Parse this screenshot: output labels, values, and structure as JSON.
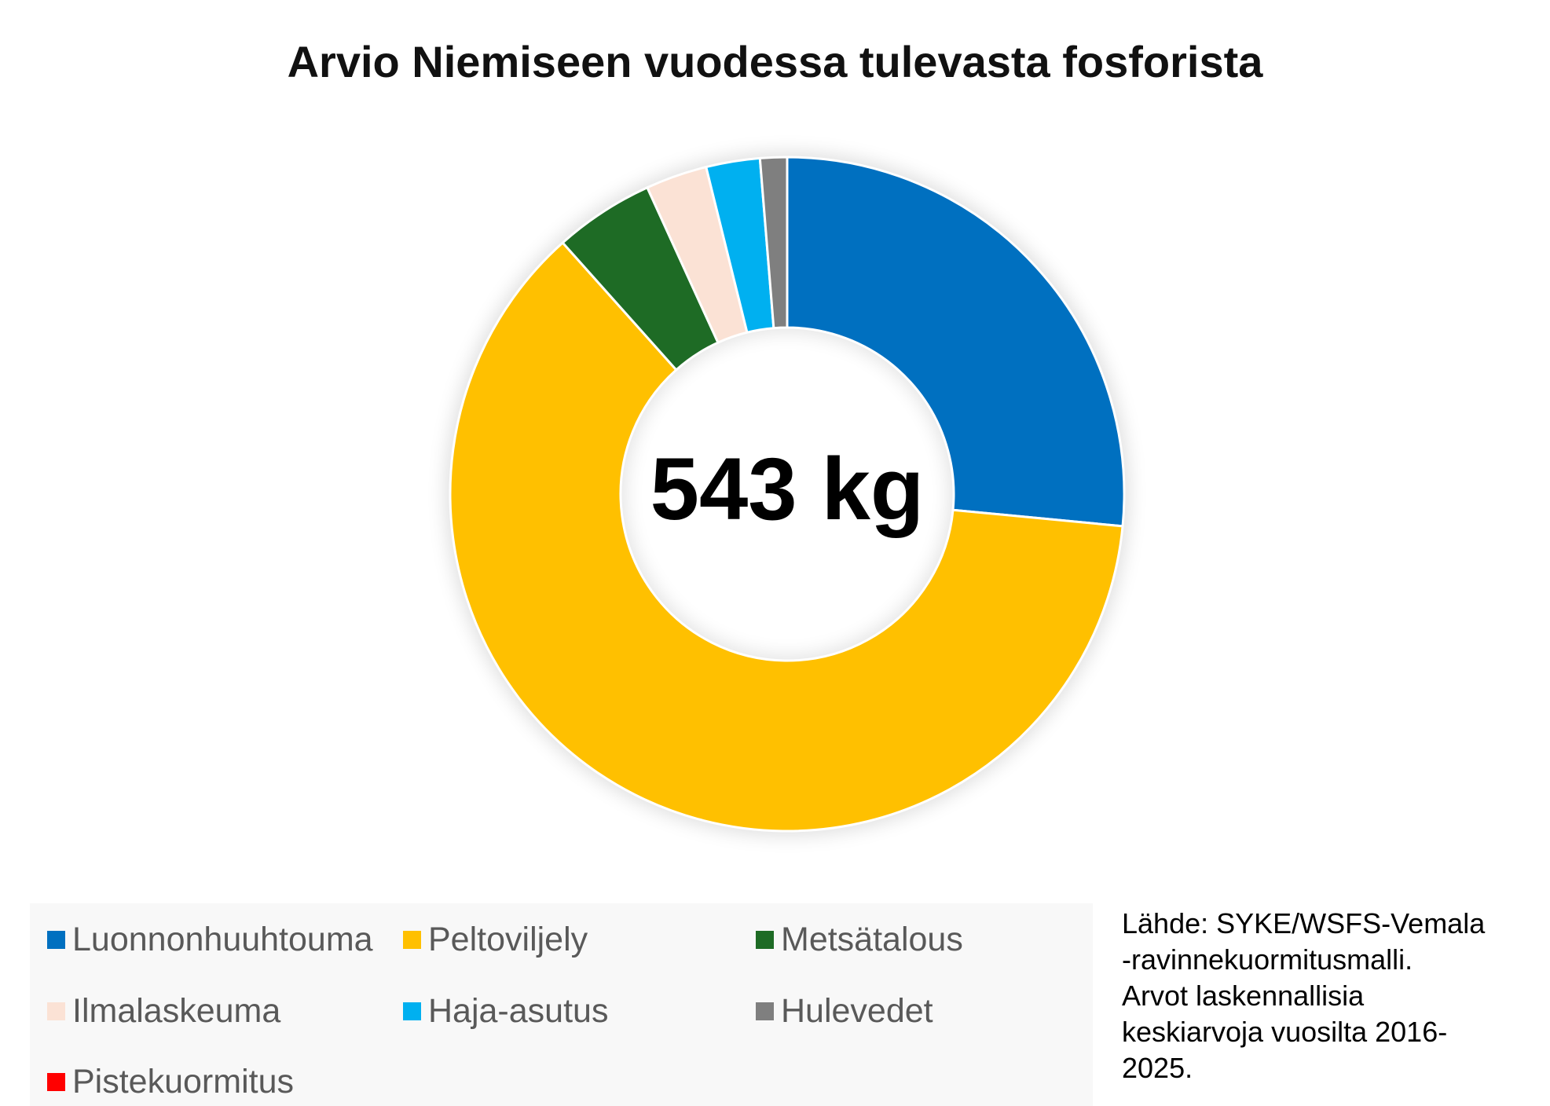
{
  "chart_data": {
    "type": "pie",
    "donut": true,
    "title": "Arvio Niemiseen vuodessa tulevasta fosforista",
    "center_label": "543 kg",
    "categories": [
      "Luonnonhuuhtouma",
      "Peltoviljely",
      "Metsätalous",
      "Ilmalaskeuma",
      "Haja-asutus",
      "Hulevedet",
      "Pistekuormitus"
    ],
    "values": [
      144,
      336,
      26,
      16,
      14,
      7,
      0
    ],
    "colors": [
      "#0070C0",
      "#FFC000",
      "#1E6B25",
      "#FBE2D5",
      "#00B0F0",
      "#7F7F7F",
      "#FF0000"
    ],
    "legend_position": "bottom"
  },
  "source_note": {
    "lines": [
      "Lähde: SYKE/WSFS-Vemala",
      "-ravinnekuormitusmalli.",
      "Arvot laskennallisia",
      "keskiarvoja vuosilta 2016-",
      "2025."
    ]
  }
}
